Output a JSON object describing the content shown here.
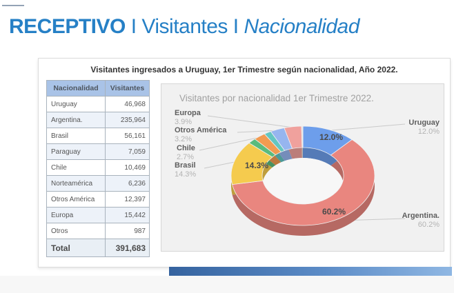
{
  "slide": {
    "title": {
      "part1": "RECEPTIVO",
      "sep1": " I ",
      "part2": "Visitantes",
      "sep2": " I ",
      "part3": "Nacionalidad"
    },
    "subtitle": "Visitantes ingresados a Uruguay, 1er Trimestre según nacionalidad, Año 2022.",
    "accent_color": "#2680C6"
  },
  "table": {
    "headers": [
      "Nacionalidad",
      "Visitantes"
    ],
    "rows": [
      [
        "Uruguay",
        "46,968"
      ],
      [
        "Argentina.",
        "235,964"
      ],
      [
        "Brasil",
        "56,161"
      ],
      [
        "Paraguay",
        "7,059"
      ],
      [
        "Chile",
        "10,469"
      ],
      [
        "Norteamérica",
        "6,236"
      ],
      [
        "Otros América",
        "12,397"
      ],
      [
        "Europa",
        "15,442"
      ],
      [
        "Otros",
        "987"
      ]
    ],
    "total": {
      "label": "Total",
      "value": "391,683"
    },
    "header_bg": "#A9C3E7"
  },
  "chart_data": {
    "type": "pie",
    "donut": true,
    "style": "3d",
    "title": "Visitantes por nacionalidad 1er Trimestre 2022.",
    "legend_position": "labeled-callouts",
    "series": [
      {
        "label": "Uruguay",
        "value": 46968,
        "pct": 12.0,
        "color": "#6D9EEB"
      },
      {
        "label": "Argentina.",
        "value": 235964,
        "pct": 60.2,
        "color": "#E9867F"
      },
      {
        "label": "Brasil",
        "value": 56161,
        "pct": 14.3,
        "color": "#F5CB4E"
      },
      {
        "label": "Paraguay",
        "value": 7059,
        "pct": 1.8,
        "color": "#5BBB7D"
      },
      {
        "label": "Chile",
        "value": 10469,
        "pct": 2.7,
        "color": "#F29B51"
      },
      {
        "label": "Norteamérica",
        "value": 6236,
        "pct": 1.6,
        "color": "#64C6C0"
      },
      {
        "label": "Otros América",
        "value": 12397,
        "pct": 3.2,
        "color": "#96B5EF"
      },
      {
        "label": "Europa",
        "value": 15442,
        "pct": 3.9,
        "color": "#F0A19D"
      },
      {
        "label": "Otros",
        "value": 987,
        "pct": 0.3,
        "color": "#E3E3E3"
      }
    ],
    "inner_labels": [
      {
        "text": "12.0%"
      },
      {
        "text": "14.3%"
      },
      {
        "text": "60.2%"
      }
    ],
    "callouts_left": [
      {
        "name": "Europa",
        "pct": "3.9%"
      },
      {
        "name": "Otros América",
        "pct": "3.2%"
      },
      {
        "name": "Chile",
        "pct": "2.7%"
      },
      {
        "name": "Brasil",
        "pct": "14.3%"
      }
    ],
    "callouts_right": [
      {
        "name": "Uruguay",
        "pct": "12.0%"
      },
      {
        "name": "Argentina.",
        "pct": "60.2%"
      }
    ]
  }
}
